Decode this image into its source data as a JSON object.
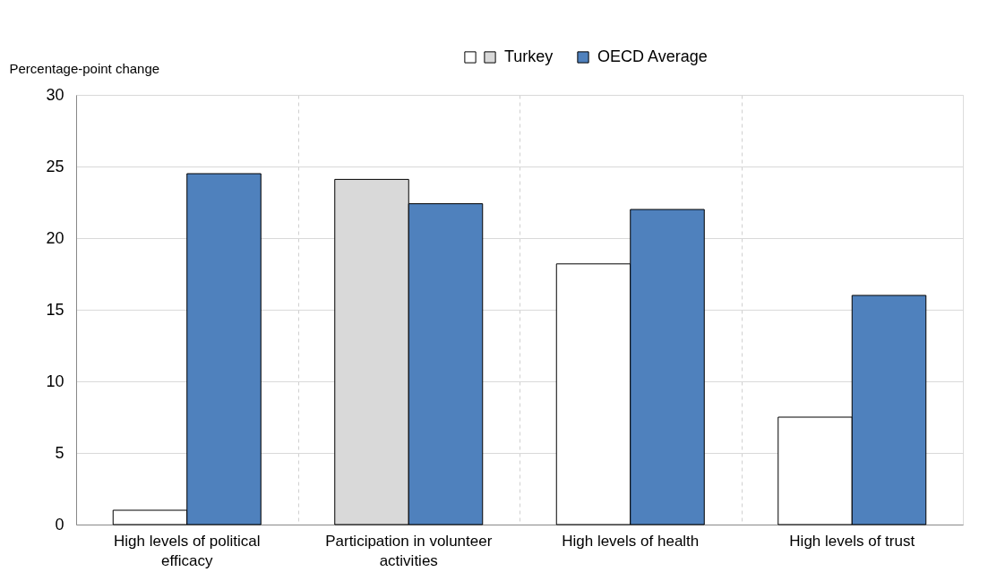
{
  "chart_data": {
    "type": "bar",
    "ylabel": "Percentage-point change",
    "categories": [
      "High levels of political efficacy",
      "Participation in volunteer activities",
      "High levels of health",
      "High levels of trust"
    ],
    "series": [
      {
        "name": "Turkey",
        "colors": [
          "#ffffff",
          "#d9d9d9",
          "#ffffff",
          "#ffffff"
        ],
        "values": [
          1.0,
          24.1,
          18.2,
          7.5
        ]
      },
      {
        "name": "OECD Average",
        "color": "#4f81bd",
        "values": [
          24.5,
          22.4,
          22.0,
          16.0
        ]
      }
    ],
    "ylim": [
      0,
      30
    ],
    "yticks": [
      0,
      5,
      10,
      15,
      20,
      25,
      30
    ],
    "grid": true,
    "legend": "top"
  }
}
